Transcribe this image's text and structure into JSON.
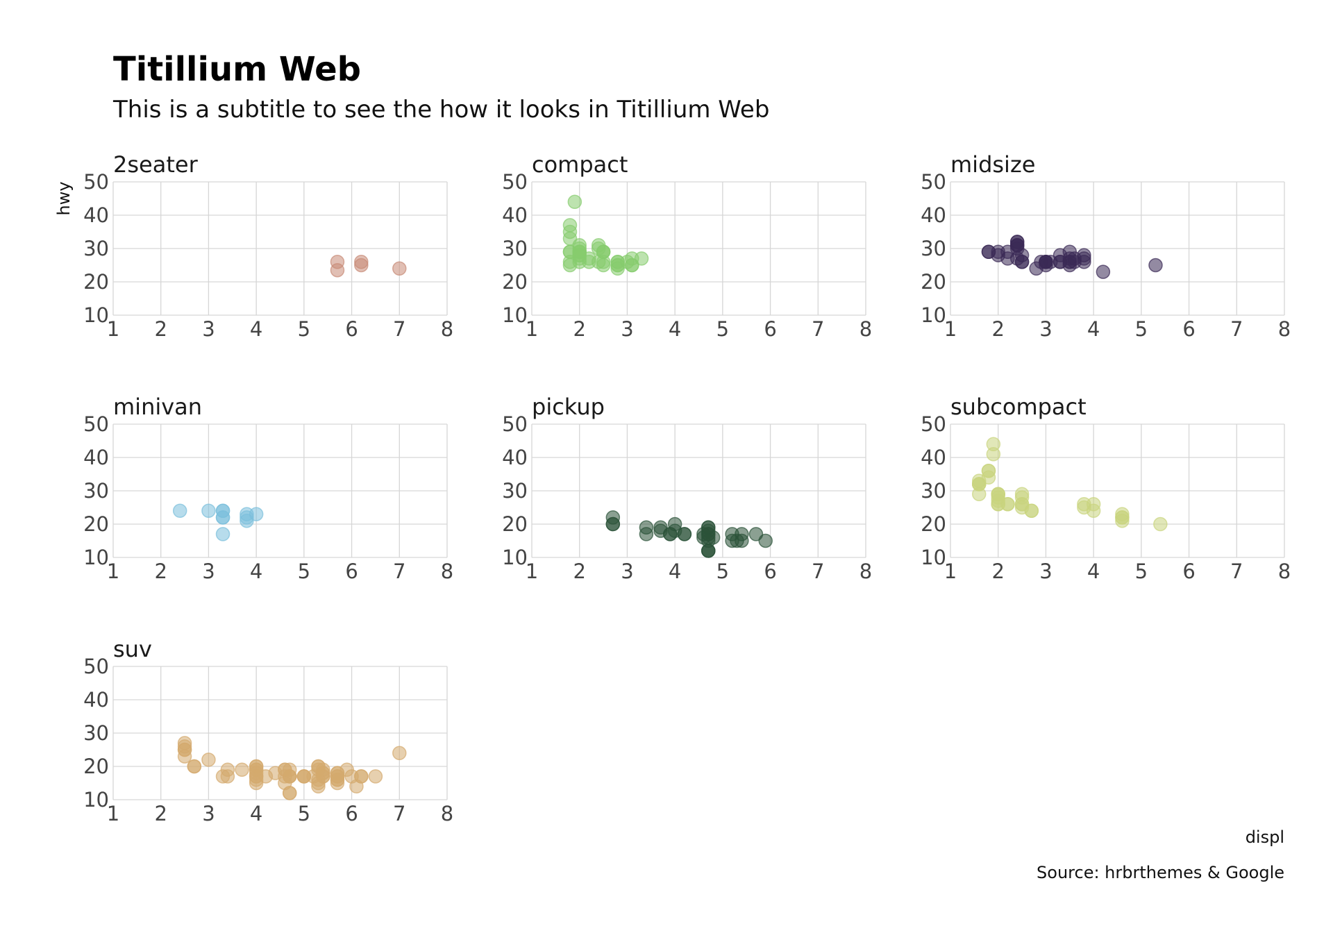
{
  "chart_data": {
    "type": "scatter",
    "title": "Titillium Web",
    "subtitle": "This is a subtitle to see the how it looks in Titillium Web",
    "xlabel": "displ",
    "ylabel": "hwy",
    "caption": "Source: hrbrthemes & Google",
    "xlim": [
      1,
      8
    ],
    "ylim": [
      10,
      50
    ],
    "xticks": [
      1,
      2,
      3,
      4,
      5,
      6,
      7,
      8
    ],
    "yticks": [
      10,
      20,
      30,
      40,
      50
    ],
    "grid": true,
    "legend": "none",
    "facets": [
      {
        "name": "2seater",
        "color": "#C88A76",
        "points": [
          [
            5.7,
            26
          ],
          [
            5.7,
            23.5
          ],
          [
            6.2,
            26
          ],
          [
            6.2,
            25
          ],
          [
            7.0,
            24
          ]
        ]
      },
      {
        "name": "compact",
        "color": "#86CC6D",
        "points": [
          [
            1.8,
            29
          ],
          [
            1.8,
            29
          ],
          [
            2.0,
            31
          ],
          [
            2.0,
            30
          ],
          [
            2.8,
            26
          ],
          [
            2.8,
            26
          ],
          [
            3.1,
            27
          ],
          [
            1.8,
            26
          ],
          [
            1.8,
            25
          ],
          [
            2.0,
            28
          ],
          [
            2.0,
            27
          ],
          [
            2.8,
            25
          ],
          [
            2.8,
            25
          ],
          [
            3.1,
            25
          ],
          [
            3.1,
            25
          ],
          [
            2.2,
            26
          ],
          [
            2.2,
            27
          ],
          [
            2.4,
            30
          ],
          [
            2.4,
            31
          ],
          [
            3.0,
            26
          ],
          [
            3.3,
            27
          ],
          [
            1.8,
            33
          ],
          [
            1.8,
            35
          ],
          [
            1.8,
            37
          ],
          [
            2.0,
            29
          ],
          [
            2.0,
            26
          ],
          [
            2.0,
            29
          ],
          [
            2.5,
            29
          ],
          [
            2.5,
            29
          ],
          [
            2.4,
            26
          ],
          [
            2.8,
            24
          ],
          [
            1.9,
            44
          ],
          [
            2.0,
            29
          ],
          [
            2.0,
            28
          ],
          [
            2.5,
            26
          ],
          [
            2.5,
            25
          ],
          [
            2.5,
            29
          ]
        ]
      },
      {
        "name": "midsize",
        "color": "#3B2A55",
        "points": [
          [
            2.4,
            27
          ],
          [
            2.4,
            30
          ],
          [
            3.1,
            26
          ],
          [
            3.5,
            29
          ],
          [
            3.6,
            26
          ],
          [
            2.4,
            31
          ],
          [
            3.0,
            26
          ],
          [
            3.3,
            28
          ],
          [
            3.3,
            26
          ],
          [
            3.3,
            26
          ],
          [
            3.8,
            26
          ],
          [
            3.8,
            27
          ],
          [
            3.8,
            28
          ],
          [
            4.2,
            23
          ],
          [
            5.3,
            25
          ],
          [
            1.8,
            29
          ],
          [
            1.8,
            29
          ],
          [
            2.0,
            28
          ],
          [
            2.0,
            29
          ],
          [
            2.2,
            27
          ],
          [
            2.4,
            32
          ],
          [
            2.4,
            31
          ],
          [
            2.5,
            26
          ],
          [
            2.5,
            26
          ],
          [
            2.8,
            24
          ],
          [
            3.0,
            26
          ],
          [
            3.0,
            26
          ],
          [
            3.5,
            27
          ],
          [
            3.5,
            25
          ],
          [
            3.5,
            26
          ],
          [
            2.4,
            32
          ],
          [
            3.0,
            26
          ],
          [
            2.2,
            29
          ],
          [
            2.5,
            28
          ],
          [
            3.0,
            25
          ],
          [
            2.9,
            26
          ],
          [
            2.4,
            31
          ],
          [
            3.6,
            27
          ],
          [
            3.5,
            26
          ]
        ]
      },
      {
        "name": "minivan",
        "color": "#7BBFDC",
        "points": [
          [
            2.4,
            24
          ],
          [
            3.0,
            24
          ],
          [
            3.3,
            22
          ],
          [
            3.3,
            22
          ],
          [
            3.3,
            24
          ],
          [
            3.3,
            24
          ],
          [
            3.3,
            17
          ],
          [
            3.8,
            22
          ],
          [
            3.8,
            21
          ],
          [
            3.8,
            23
          ],
          [
            4.0,
            23
          ]
        ]
      },
      {
        "name": "pickup",
        "color": "#2B5239",
        "points": [
          [
            2.7,
            20
          ],
          [
            2.7,
            20
          ],
          [
            2.7,
            22
          ],
          [
            3.4,
            17
          ],
          [
            3.4,
            19
          ],
          [
            3.7,
            18
          ],
          [
            3.7,
            19
          ],
          [
            3.9,
            17
          ],
          [
            3.9,
            17
          ],
          [
            4.0,
            20
          ],
          [
            4.0,
            18
          ],
          [
            4.2,
            17
          ],
          [
            4.2,
            17
          ],
          [
            4.6,
            17
          ],
          [
            4.6,
            16
          ],
          [
            4.7,
            12
          ],
          [
            4.7,
            17
          ],
          [
            4.7,
            17
          ],
          [
            4.7,
            16
          ],
          [
            4.7,
            12
          ],
          [
            4.7,
            19
          ],
          [
            4.7,
            18
          ],
          [
            4.8,
            16
          ],
          [
            5.2,
            15
          ],
          [
            5.2,
            17
          ],
          [
            5.3,
            15
          ],
          [
            5.4,
            15
          ],
          [
            5.4,
            17
          ],
          [
            5.7,
            17
          ],
          [
            5.9,
            15
          ],
          [
            4.7,
            15
          ],
          [
            4.7,
            19
          ],
          [
            4.7,
            12
          ]
        ]
      },
      {
        "name": "subcompact",
        "color": "#C9D47E",
        "points": [
          [
            1.6,
            33
          ],
          [
            1.6,
            32
          ],
          [
            1.6,
            32
          ],
          [
            1.6,
            29
          ],
          [
            1.6,
            32
          ],
          [
            1.8,
            34
          ],
          [
            1.8,
            36
          ],
          [
            1.8,
            36
          ],
          [
            2.0,
            29
          ],
          [
            2.0,
            26
          ],
          [
            2.0,
            27
          ],
          [
            2.0,
            29
          ],
          [
            2.0,
            26
          ],
          [
            2.2,
            26
          ],
          [
            2.5,
            28
          ],
          [
            2.5,
            26
          ],
          [
            2.5,
            29
          ],
          [
            2.7,
            24
          ],
          [
            2.7,
            24
          ],
          [
            3.8,
            25
          ],
          [
            3.8,
            26
          ],
          [
            4.0,
            26
          ],
          [
            4.0,
            24
          ],
          [
            4.6,
            21
          ],
          [
            4.6,
            22
          ],
          [
            4.6,
            23
          ],
          [
            4.6,
            22
          ],
          [
            5.4,
            20
          ],
          [
            1.9,
            41
          ],
          [
            1.9,
            44
          ],
          [
            2.0,
            29
          ],
          [
            2.0,
            28
          ],
          [
            2.5,
            26
          ],
          [
            2.5,
            25
          ],
          [
            2.2,
            26
          ]
        ]
      },
      {
        "name": "suv",
        "color": "#D4AA6E",
        "points": [
          [
            5.3,
            20
          ],
          [
            5.3,
            15
          ],
          [
            5.3,
            20
          ],
          [
            5.7,
            17
          ],
          [
            6.0,
            17
          ],
          [
            5.7,
            18
          ],
          [
            5.7,
            18
          ],
          [
            6.2,
            17
          ],
          [
            6.2,
            17
          ],
          [
            7.0,
            24
          ],
          [
            5.3,
            19
          ],
          [
            5.3,
            14
          ],
          [
            5.7,
            15
          ],
          [
            6.5,
            17
          ],
          [
            4.7,
            19
          ],
          [
            4.7,
            17
          ],
          [
            4.7,
            12
          ],
          [
            5.2,
            17
          ],
          [
            5.7,
            17
          ],
          [
            5.9,
            19
          ],
          [
            4.6,
            15
          ],
          [
            5.4,
            17
          ],
          [
            5.4,
            18
          ],
          [
            4.0,
            17
          ],
          [
            4.0,
            19
          ],
          [
            4.0,
            19
          ],
          [
            4.0,
            20
          ],
          [
            4.2,
            17
          ],
          [
            4.0,
            17
          ],
          [
            4.6,
            17
          ],
          [
            5.0,
            17
          ],
          [
            4.4,
            18
          ],
          [
            4.0,
            20
          ],
          [
            2.5,
            26
          ],
          [
            2.5,
            23
          ],
          [
            2.5,
            25
          ],
          [
            2.5,
            27
          ],
          [
            2.5,
            25
          ],
          [
            2.7,
            20
          ],
          [
            2.7,
            20
          ],
          [
            3.0,
            22
          ],
          [
            3.3,
            17
          ],
          [
            3.4,
            17
          ],
          [
            3.4,
            19
          ],
          [
            3.7,
            19
          ],
          [
            4.0,
            15
          ],
          [
            4.0,
            18
          ],
          [
            4.6,
            19
          ],
          [
            5.0,
            17
          ],
          [
            5.4,
            17
          ],
          [
            5.4,
            18
          ],
          [
            4.7,
            12
          ],
          [
            4.7,
            17
          ],
          [
            4.7,
            17
          ],
          [
            5.7,
            16
          ],
          [
            6.1,
            14
          ],
          [
            4.0,
            16
          ],
          [
            4.6,
            19
          ],
          [
            5.0,
            17
          ],
          [
            5.3,
            16
          ],
          [
            5.4,
            19
          ],
          [
            5.7,
            16
          ]
        ]
      }
    ]
  }
}
